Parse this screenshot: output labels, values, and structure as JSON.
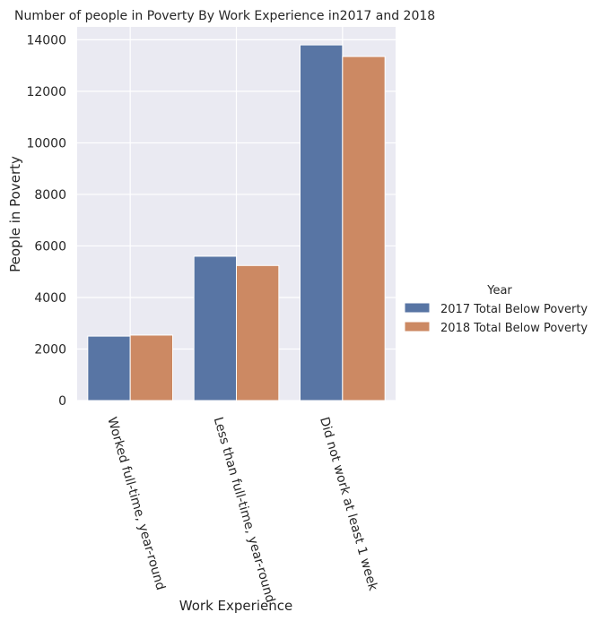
{
  "chart_data": {
    "type": "bar",
    "title": "Number of people in Poverty By Work Experience in2017 and 2018",
    "xlabel": "Work Experience",
    "ylabel": "People in Poverty",
    "categories": [
      "Worked full-time, year-round",
      "Less than full-time, year-round",
      "Did not work at least 1 week"
    ],
    "series": [
      {
        "name": "2017 Total Below Poverty",
        "values": [
          2500,
          5600,
          13800
        ],
        "color": "#5875a4"
      },
      {
        "name": "2018 Total Below Poverty",
        "values": [
          2540,
          5240,
          13350
        ],
        "color": "#cc8963"
      }
    ],
    "ylim": [
      0,
      14500
    ],
    "yticks": [
      0,
      2000,
      4000,
      6000,
      8000,
      10000,
      12000,
      14000
    ],
    "legend_title": "Year",
    "legend_position": "center-right, outside plot",
    "grid": true,
    "background": "#eaeaf2",
    "grid_color": "#ffffff"
  }
}
